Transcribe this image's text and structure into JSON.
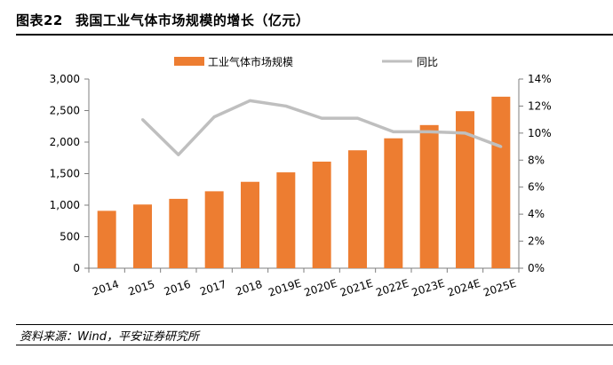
{
  "header": {
    "figure_label": "图表22",
    "title": "我国工业气体市场规模的增长（亿元）"
  },
  "footer": {
    "source": "资料来源：Wind，平安证券研究所"
  },
  "colors": {
    "bar": "#ED7D31",
    "line": "#BFBFBF",
    "axis": "#7F7F7F"
  },
  "chart_data": {
    "type": "bar",
    "title": "",
    "categories": [
      "2014",
      "2015",
      "2016",
      "2017",
      "2018",
      "2019E",
      "2020E",
      "2021E",
      "2022E",
      "2023E",
      "2024E",
      "2025E"
    ],
    "series": [
      {
        "name": "工业气体市场规模",
        "type": "bar",
        "axis": "left",
        "values": [
          910,
          1010,
          1100,
          1220,
          1370,
          1520,
          1690,
          1870,
          2060,
          2270,
          2490,
          2720
        ]
      },
      {
        "name": "同比",
        "type": "line",
        "axis": "right",
        "values": [
          null,
          11.0,
          8.4,
          11.2,
          12.4,
          12.0,
          11.1,
          11.1,
          10.1,
          10.1,
          10.0,
          9.0
        ]
      }
    ],
    "y_left": {
      "min": 0,
      "max": 3000,
      "step": 500,
      "tick_labels": [
        "0",
        "500",
        "1,000",
        "1,500",
        "2,000",
        "2,500",
        "3,000"
      ]
    },
    "y_right": {
      "min": 0,
      "max": 14,
      "step": 2,
      "tick_labels": [
        "0%",
        "2%",
        "4%",
        "6%",
        "8%",
        "10%",
        "12%",
        "14%"
      ]
    },
    "legend": [
      "工业气体市场规模",
      "同比"
    ],
    "legend_position": "top-center"
  }
}
